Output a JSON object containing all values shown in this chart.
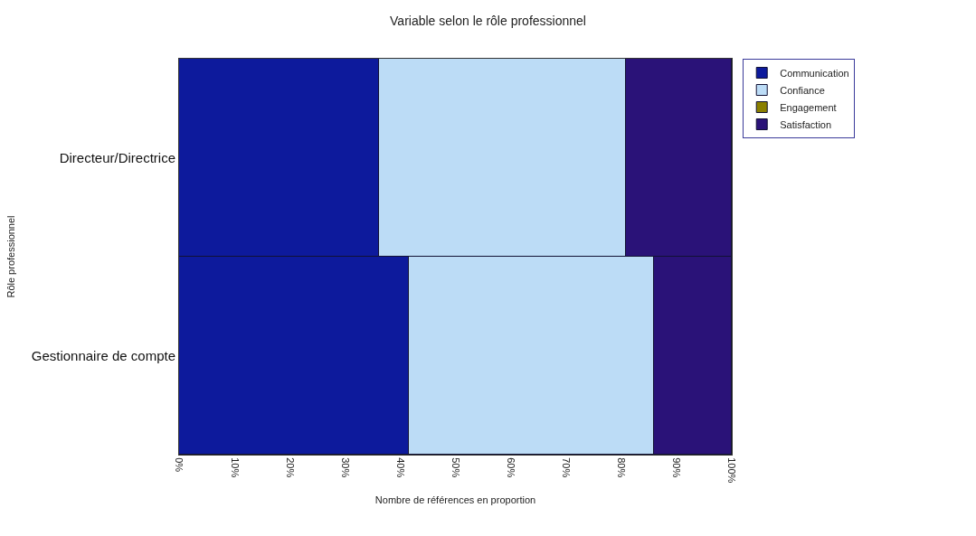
{
  "chart_data": {
    "type": "bar",
    "orientation": "horizontal",
    "stacked": true,
    "title": "Variable selon le rôle professionnel",
    "xlabel": "Nombre de références en proportion",
    "ylabel": "Rôle professionnel",
    "categories": [
      "Directeur/Directrice",
      "Gestionnaire de compte"
    ],
    "series": [
      {
        "name": "Communication",
        "color": "#0d1a9c",
        "values": [
          36.2,
          41.6
        ]
      },
      {
        "name": "Confiance",
        "color": "#bcdcf6",
        "values": [
          44.6,
          44.4
        ]
      },
      {
        "name": "Engagement",
        "color": "#8a7f00",
        "values": [
          0,
          0
        ]
      },
      {
        "name": "Satisfaction",
        "color": "#2a1278",
        "values": [
          19.2,
          14.0
        ]
      }
    ],
    "xlim": [
      0,
      100
    ],
    "xticks": [
      {
        "value": 0,
        "label": "0%"
      },
      {
        "value": 10,
        "label": "10%"
      },
      {
        "value": 20,
        "label": "20%"
      },
      {
        "value": 30,
        "label": "30%"
      },
      {
        "value": 40,
        "label": "40%"
      },
      {
        "value": 50,
        "label": "50%"
      },
      {
        "value": 60,
        "label": "60%"
      },
      {
        "value": 70,
        "label": "70%"
      },
      {
        "value": 80,
        "label": "80%"
      },
      {
        "value": 90,
        "label": "90%"
      },
      {
        "value": 100,
        "label": "100%"
      }
    ],
    "legend": "top right"
  }
}
